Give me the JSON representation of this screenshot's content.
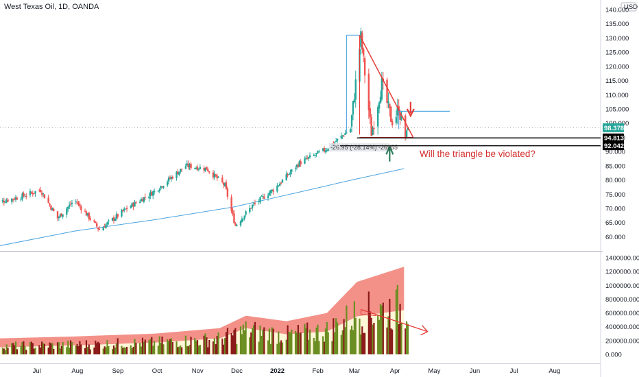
{
  "header": {
    "title": "West Texas Oil, 1D, OANDA"
  },
  "currency": "USD",
  "annotation_text": "Will the triangle be violated?",
  "measure_label": "-26.95 (-28.14%) -26955",
  "colors": {
    "up": "#26a69a",
    "down": "#ef5350",
    "up_volume": "#6b8e23",
    "down_volume": "#8b1a1a",
    "ma": "#4aa3df",
    "triangle": "#e53935",
    "band_upper": "#f28b82",
    "band_lower": "#fff7d6",
    "support": "#000000",
    "arrow_down": "#e53935",
    "arrow_up": "#2e7d5b"
  },
  "chart_data": [
    {
      "type": "candlestick",
      "title": "West Texas Oil, 1D, OANDA",
      "ylim": [
        56,
        140
      ],
      "y_ticks": [
        "60.000",
        "65.000",
        "70.000",
        "75.000",
        "80.000",
        "85.000",
        "90.000",
        "95.000",
        "100.000",
        "105.000",
        "110.000",
        "115.000",
        "120.000",
        "125.000",
        "130.000",
        "135.000",
        "140.000"
      ],
      "x_ticks": [
        "Jul",
        "Aug",
        "Sep",
        "Oct",
        "Nov",
        "Dec",
        "2022",
        "Feb",
        "Mar",
        "Apr",
        "May",
        "Jun",
        "Jul",
        "Aug"
      ],
      "price_tags": [
        {
          "label": "98.378",
          "value": 98.378,
          "style": "last"
        },
        {
          "label": "94.813",
          "value": 94.813,
          "style": "level"
        },
        {
          "label": "92.042",
          "value": 92.042,
          "style": "level"
        }
      ],
      "horizontal_levels": [
        94.813,
        92.042,
        104.2
      ],
      "triangle": {
        "apex_high": 131.0,
        "right_low": 95.0
      },
      "ma_200": [
        {
          "x": "2021-06-01",
          "y": 56.5
        },
        {
          "x": "2021-08-01",
          "y": 62.0
        },
        {
          "x": "2021-10-01",
          "y": 66.0
        },
        {
          "x": "2021-12-01",
          "y": 70.5
        },
        {
          "x": "2022-02-01",
          "y": 77.0
        },
        {
          "x": "2022-03-01",
          "y": 80.0
        },
        {
          "x": "2022-04-10",
          "y": 84.0
        }
      ],
      "price_path": [
        {
          "x": "2021-06-01",
          "y": 72.0
        },
        {
          "x": "2021-06-20",
          "y": 74.0
        },
        {
          "x": "2021-07-06",
          "y": 76.5
        },
        {
          "x": "2021-07-19",
          "y": 66.5
        },
        {
          "x": "2021-08-01",
          "y": 73.0
        },
        {
          "x": "2021-08-20",
          "y": 62.5
        },
        {
          "x": "2021-09-10",
          "y": 70.0
        },
        {
          "x": "2021-10-01",
          "y": 76.0
        },
        {
          "x": "2021-10-25",
          "y": 85.0
        },
        {
          "x": "2021-11-10",
          "y": 84.0
        },
        {
          "x": "2021-11-24",
          "y": 78.0
        },
        {
          "x": "2021-11-29",
          "y": 69.0
        },
        {
          "x": "2021-12-02",
          "y": 64.0
        },
        {
          "x": "2021-12-15",
          "y": 71.0
        },
        {
          "x": "2022-01-01",
          "y": 77.0
        },
        {
          "x": "2022-01-20",
          "y": 86.0
        },
        {
          "x": "2022-02-10",
          "y": 91.0
        },
        {
          "x": "2022-02-28",
          "y": 98.0
        },
        {
          "x": "2022-03-08",
          "y": 130.5
        },
        {
          "x": "2022-03-16",
          "y": 96.0
        },
        {
          "x": "2022-03-24",
          "y": 114.0
        },
        {
          "x": "2022-04-01",
          "y": 100.0
        },
        {
          "x": "2022-04-06",
          "y": 105.0
        },
        {
          "x": "2022-04-11",
          "y": 95.0
        },
        {
          "x": "2022-04-13",
          "y": 98.378
        }
      ]
    },
    {
      "type": "bar",
      "title": "Volume",
      "ylim": [
        0,
        1400000
      ],
      "y_ticks": [
        "0.000",
        "200000.000",
        "400000.000",
        "600000.000",
        "800000.000",
        "1000000.000",
        "1200000.000",
        "1400000.000"
      ],
      "band_upper": [
        {
          "x": "2021-06-01",
          "y": 230000
        },
        {
          "x": "2021-08-01",
          "y": 260000
        },
        {
          "x": "2021-10-01",
          "y": 300000
        },
        {
          "x": "2021-11-20",
          "y": 380000
        },
        {
          "x": "2021-12-10",
          "y": 560000
        },
        {
          "x": "2022-01-10",
          "y": 480000
        },
        {
          "x": "2022-02-10",
          "y": 600000
        },
        {
          "x": "2022-03-05",
          "y": 1050000
        },
        {
          "x": "2022-04-10",
          "y": 1270000
        }
      ],
      "band_lower": [
        {
          "x": "2021-06-01",
          "y": 100000
        },
        {
          "x": "2021-08-01",
          "y": 130000
        },
        {
          "x": "2021-10-01",
          "y": 170000
        },
        {
          "x": "2021-11-20",
          "y": 230000
        },
        {
          "x": "2021-12-10",
          "y": 380000
        },
        {
          "x": "2022-01-10",
          "y": 290000
        },
        {
          "x": "2022-02-10",
          "y": 330000
        },
        {
          "x": "2022-03-05",
          "y": 550000
        },
        {
          "x": "2022-04-10",
          "y": 640000
        }
      ]
    }
  ]
}
